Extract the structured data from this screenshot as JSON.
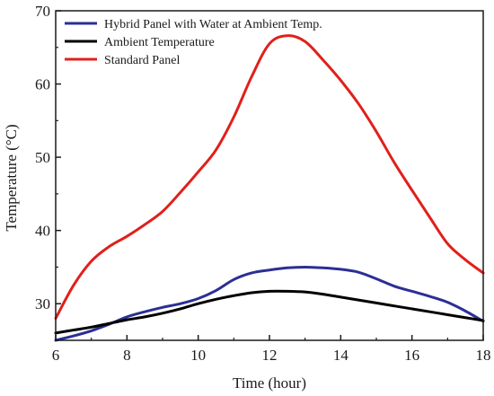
{
  "chart_data": {
    "type": "line",
    "xlabel": "Time (hour)",
    "ylabel": "Temperature (°C)",
    "xlim": [
      6,
      18
    ],
    "ylim": [
      25,
      70
    ],
    "xticks": [
      6,
      8,
      10,
      12,
      14,
      16,
      18
    ],
    "yticks": [
      30,
      40,
      50,
      60,
      70
    ],
    "legend_position": "top-left",
    "grid": false,
    "series": [
      {
        "name": "Hybrid Panel with Water at Ambient Temp.",
        "color": "#2b2f94",
        "x": [
          6,
          6.5,
          7,
          7.5,
          8,
          8.5,
          9,
          9.5,
          10,
          10.5,
          11,
          11.5,
          12,
          12.5,
          13,
          13.5,
          14,
          14.5,
          15,
          15.5,
          16,
          16.5,
          17,
          17.5,
          18
        ],
        "y": [
          25.0,
          25.6,
          26.3,
          27.2,
          28.2,
          28.9,
          29.5,
          30.0,
          30.7,
          31.8,
          33.3,
          34.2,
          34.6,
          34.9,
          35.0,
          34.9,
          34.7,
          34.3,
          33.4,
          32.4,
          31.7,
          31.0,
          30.2,
          29.0,
          27.6
        ]
      },
      {
        "name": "Ambient Temperature",
        "color": "#000000",
        "x": [
          6,
          6.5,
          7,
          7.5,
          8,
          8.5,
          9,
          9.5,
          10,
          10.5,
          11,
          11.5,
          12,
          12.5,
          13,
          13.5,
          14,
          14.5,
          15,
          15.5,
          16,
          16.5,
          17,
          17.5,
          18
        ],
        "y": [
          26.0,
          26.4,
          26.8,
          27.3,
          27.8,
          28.2,
          28.7,
          29.3,
          30.0,
          30.6,
          31.1,
          31.5,
          31.7,
          31.7,
          31.6,
          31.3,
          30.9,
          30.5,
          30.1,
          29.7,
          29.3,
          28.9,
          28.5,
          28.1,
          27.7
        ]
      },
      {
        "name": "Standard Panel",
        "color": "#e0201b",
        "x": [
          6,
          6.5,
          7,
          7.5,
          8,
          8.5,
          9,
          9.5,
          10,
          10.5,
          11,
          11.5,
          12,
          12.5,
          13,
          13.5,
          14,
          14.5,
          15,
          15.5,
          16,
          16.5,
          17,
          17.5,
          18
        ],
        "y": [
          28.0,
          32.5,
          35.8,
          37.8,
          39.2,
          40.8,
          42.6,
          45.2,
          48.0,
          51.0,
          55.5,
          61.0,
          65.5,
          66.6,
          65.8,
          63.3,
          60.5,
          57.3,
          53.5,
          49.3,
          45.5,
          41.8,
          38.2,
          36.0,
          34.2
        ]
      }
    ]
  }
}
